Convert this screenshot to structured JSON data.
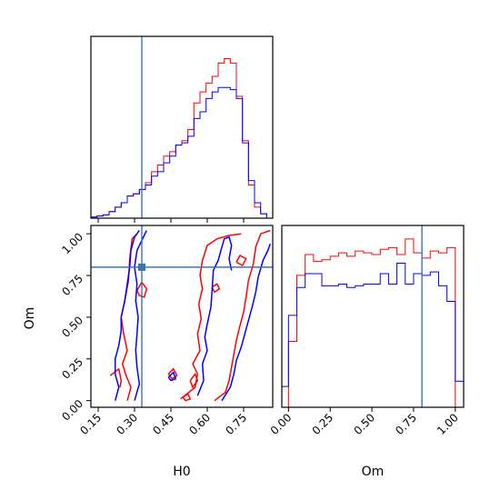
{
  "chart_data": {
    "type": "corner",
    "parameters": [
      "H0",
      "Om"
    ],
    "truths": {
      "H0": 0.33,
      "Om": 0.8
    },
    "colors": {
      "series_a": "#ff0000",
      "series_b": "#0000ff",
      "truth": "#3a75ac"
    },
    "axes": {
      "H0": {
        "range": [
          0.12,
          0.87
        ],
        "ticks": [
          0.15,
          0.3,
          0.45,
          0.6,
          0.75
        ],
        "tick_labels": [
          "0.15",
          "0.30",
          "0.45",
          "0.60",
          "0.75"
        ],
        "label": "H0"
      },
      "Om": {
        "range": [
          -0.04,
          1.05
        ],
        "ticks": [
          0.0,
          0.25,
          0.5,
          0.75,
          1.0
        ],
        "tick_labels": [
          "0.00",
          "0.25",
          "0.50",
          "0.75",
          "1.00"
        ],
        "label": "Om"
      }
    },
    "hist_H0": {
      "bin_edges": [
        0.12,
        0.145,
        0.17,
        0.195,
        0.22,
        0.245,
        0.27,
        0.295,
        0.32,
        0.345,
        0.37,
        0.395,
        0.42,
        0.445,
        0.47,
        0.495,
        0.52,
        0.545,
        0.57,
        0.595,
        0.62,
        0.645,
        0.67,
        0.695,
        0.72,
        0.745,
        0.77,
        0.795,
        0.82,
        0.845,
        0.87
      ],
      "series": [
        {
          "color": "red",
          "values": [
            0.5,
            1,
            1.5,
            3,
            5,
            7,
            10,
            11,
            13,
            16,
            21,
            24,
            28,
            30,
            33,
            35,
            40,
            52,
            57,
            61,
            64,
            70,
            72,
            70,
            55,
            35,
            15,
            5,
            2,
            0
          ]
        },
        {
          "color": "blue",
          "values": [
            0.5,
            1,
            1.5,
            3,
            5,
            7,
            10,
            11,
            13,
            15,
            19,
            21,
            25,
            28,
            33,
            34,
            37,
            45,
            48,
            54,
            57,
            59,
            59,
            58,
            54,
            34,
            17,
            7,
            2,
            0
          ]
        }
      ]
    },
    "hist_Om": {
      "bin_edges": [
        -0.05,
        0.0,
        0.05,
        0.1,
        0.15,
        0.2,
        0.25,
        0.3,
        0.35,
        0.4,
        0.45,
        0.5,
        0.55,
        0.6,
        0.65,
        0.7,
        0.75,
        0.8,
        0.85,
        0.9,
        0.95,
        1.0,
        1.05
      ],
      "series": [
        {
          "color": "red",
          "values": [
            0,
            38,
            76,
            88,
            84,
            85,
            87,
            89,
            87,
            90,
            89,
            88,
            91,
            92,
            88,
            97,
            89,
            86,
            90,
            89,
            92,
            0
          ]
        },
        {
          "color": "blue",
          "values": [
            12,
            53,
            69,
            77,
            77,
            70,
            70,
            71,
            69,
            70,
            71,
            71,
            77,
            71,
            83,
            71,
            77,
            76,
            78,
            70,
            61,
            15
          ]
        }
      ]
    },
    "contours_2d": [
      {
        "color": "red",
        "paths": [
          [
            [
              0.27,
              0.0
            ],
            [
              0.285,
              0.08
            ],
            [
              0.265,
              0.15
            ],
            [
              0.25,
              0.22
            ],
            [
              0.27,
              0.3
            ],
            [
              0.255,
              0.4
            ],
            [
              0.245,
              0.5
            ],
            [
              0.26,
              0.6
            ],
            [
              0.275,
              0.72
            ],
            [
              0.28,
              0.85
            ],
            [
              0.29,
              0.97
            ],
            [
              0.31,
              1.0
            ]
          ],
          [
            [
              0.2,
              0.15
            ],
            [
              0.235,
              0.19
            ],
            [
              0.245,
              0.12
            ],
            [
              0.24,
              0.08
            ]
          ],
          [
            [
              0.31,
              0.66
            ],
            [
              0.33,
              0.71
            ],
            [
              0.35,
              0.67
            ],
            [
              0.34,
              0.62
            ],
            [
              0.32,
              0.63
            ],
            [
              0.31,
              0.66
            ]
          ],
          [
            [
              0.49,
              0.01
            ],
            [
              0.55,
              0.08
            ],
            [
              0.56,
              0.16
            ],
            [
              0.54,
              0.22
            ],
            [
              0.57,
              0.3
            ],
            [
              0.56,
              0.4
            ],
            [
              0.575,
              0.49
            ],
            [
              0.565,
              0.58
            ],
            [
              0.58,
              0.67
            ],
            [
              0.57,
              0.75
            ],
            [
              0.58,
              0.84
            ],
            [
              0.6,
              0.93
            ],
            [
              0.64,
              0.97
            ],
            [
              0.69,
              0.99
            ],
            [
              0.74,
              1.0
            ]
          ],
          [
            [
              0.63,
              0.0
            ],
            [
              0.675,
              0.05
            ],
            [
              0.69,
              0.12
            ],
            [
              0.7,
              0.2
            ],
            [
              0.71,
              0.28
            ],
            [
              0.72,
              0.36
            ],
            [
              0.735,
              0.45
            ],
            [
              0.75,
              0.53
            ],
            [
              0.76,
              0.62
            ],
            [
              0.77,
              0.72
            ],
            [
              0.79,
              0.82
            ],
            [
              0.8,
              0.92
            ],
            [
              0.82,
              1.0
            ],
            [
              0.86,
              1.02
            ]
          ],
          [
            [
              0.53,
              0.12
            ],
            [
              0.55,
              0.16
            ],
            [
              0.56,
              0.12
            ],
            [
              0.54,
              0.08
            ],
            [
              0.53,
              0.12
            ]
          ],
          [
            [
              0.62,
              0.68
            ],
            [
              0.64,
              0.7
            ],
            [
              0.65,
              0.67
            ],
            [
              0.63,
              0.65
            ],
            [
              0.62,
              0.68
            ]
          ],
          [
            [
              0.72,
              0.83
            ],
            [
              0.735,
              0.87
            ],
            [
              0.76,
              0.85
            ],
            [
              0.745,
              0.81
            ],
            [
              0.72,
              0.83
            ]
          ],
          [
            [
              0.44,
              0.16
            ],
            [
              0.46,
              0.19
            ],
            [
              0.475,
              0.15
            ],
            [
              0.455,
              0.13
            ],
            [
              0.44,
              0.16
            ]
          ],
          [
            [
              0.5,
              0.02
            ],
            [
              0.52,
              0.04
            ],
            [
              0.53,
              0.01
            ],
            [
              0.51,
              0.0
            ],
            [
              0.5,
              0.02
            ]
          ]
        ]
      },
      {
        "color": "blue",
        "paths": [
          [
            [
              0.22,
              0.0
            ],
            [
              0.235,
              0.08
            ],
            [
              0.22,
              0.16
            ],
            [
              0.22,
              0.25
            ],
            [
              0.235,
              0.33
            ],
            [
              0.245,
              0.42
            ],
            [
              0.245,
              0.5
            ],
            [
              0.26,
              0.6
            ],
            [
              0.27,
              0.7
            ],
            [
              0.28,
              0.8
            ],
            [
              0.285,
              0.9
            ],
            [
              0.3,
              0.98
            ],
            [
              0.32,
              1.02
            ]
          ],
          [
            [
              0.3,
              0.0
            ],
            [
              0.32,
              0.1
            ],
            [
              0.31,
              0.2
            ],
            [
              0.305,
              0.3
            ],
            [
              0.31,
              0.4
            ],
            [
              0.315,
              0.5
            ],
            [
              0.305,
              0.6
            ],
            [
              0.31,
              0.7
            ],
            [
              0.3,
              0.8
            ],
            [
              0.31,
              0.9
            ],
            [
              0.35,
              1.02
            ]
          ],
          [
            [
              0.56,
              0.03
            ],
            [
              0.585,
              0.12
            ],
            [
              0.58,
              0.22
            ],
            [
              0.6,
              0.3
            ],
            [
              0.59,
              0.38
            ],
            [
              0.6,
              0.46
            ],
            [
              0.615,
              0.56
            ],
            [
              0.62,
              0.66
            ],
            [
              0.625,
              0.78
            ],
            [
              0.645,
              0.84
            ],
            [
              0.66,
              0.92
            ],
            [
              0.67,
              0.97
            ],
            [
              0.69,
              0.98
            ],
            [
              0.7,
              0.93
            ],
            [
              0.69,
              0.85
            ],
            [
              0.7,
              0.78
            ]
          ],
          [
            [
              0.66,
              0.0
            ],
            [
              0.695,
              0.08
            ],
            [
              0.71,
              0.16
            ],
            [
              0.72,
              0.24
            ],
            [
              0.74,
              0.32
            ],
            [
              0.755,
              0.4
            ],
            [
              0.77,
              0.48
            ],
            [
              0.785,
              0.56
            ],
            [
              0.8,
              0.65
            ],
            [
              0.81,
              0.74
            ],
            [
              0.83,
              0.84
            ],
            [
              0.85,
              0.9
            ],
            [
              0.86,
              0.94
            ]
          ],
          [
            [
              0.44,
              0.14
            ],
            [
              0.46,
              0.17
            ],
            [
              0.47,
              0.13
            ],
            [
              0.45,
              0.12
            ],
            [
              0.44,
              0.14
            ]
          ]
        ]
      }
    ]
  }
}
